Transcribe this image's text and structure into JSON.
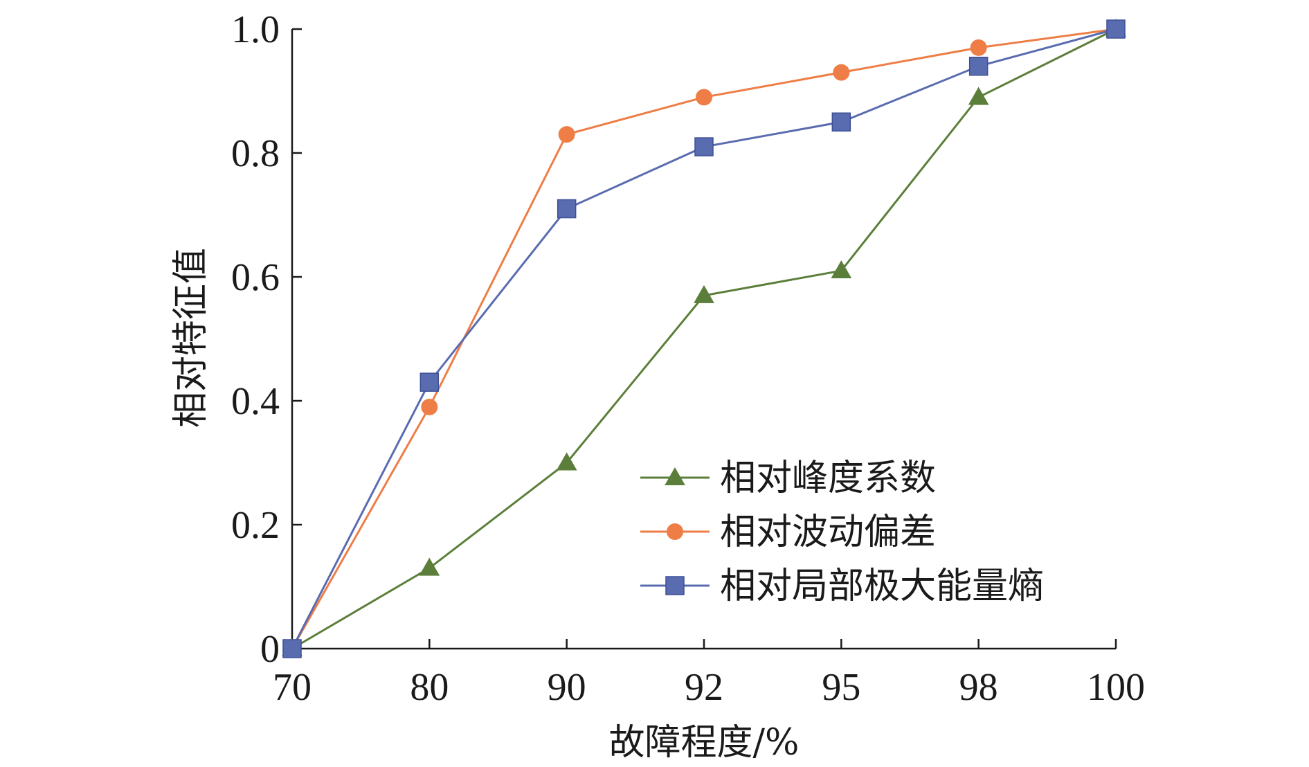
{
  "chart_data": {
    "type": "line",
    "title": "",
    "xlabel": "故障程度/%",
    "ylabel": "相对特征值",
    "categories": [
      "70",
      "80",
      "90",
      "92",
      "95",
      "98",
      "100"
    ],
    "ylim": [
      0,
      1.0
    ],
    "yticks": [
      "0",
      "0.2",
      "0.4",
      "0.6",
      "0.8",
      "1.0"
    ],
    "ytick_values": [
      0,
      0.2,
      0.4,
      0.6,
      0.8,
      1.0
    ],
    "grid": false,
    "legend_position": "bottom-right",
    "series": [
      {
        "name": "相对峰度系数",
        "marker": "triangle",
        "color": "#5b7f3a",
        "values": [
          0.0,
          0.13,
          0.3,
          0.57,
          0.61,
          0.89,
          1.0
        ]
      },
      {
        "name": "相对波动偏差",
        "marker": "circle",
        "color": "#ee7d46",
        "values": [
          0.0,
          0.39,
          0.83,
          0.89,
          0.93,
          0.97,
          1.0
        ]
      },
      {
        "name": "相对局部极大能量熵",
        "marker": "square",
        "color": "#5a6cb0",
        "values": [
          0.0,
          0.43,
          0.71,
          0.81,
          0.85,
          0.94,
          1.0
        ]
      }
    ]
  }
}
